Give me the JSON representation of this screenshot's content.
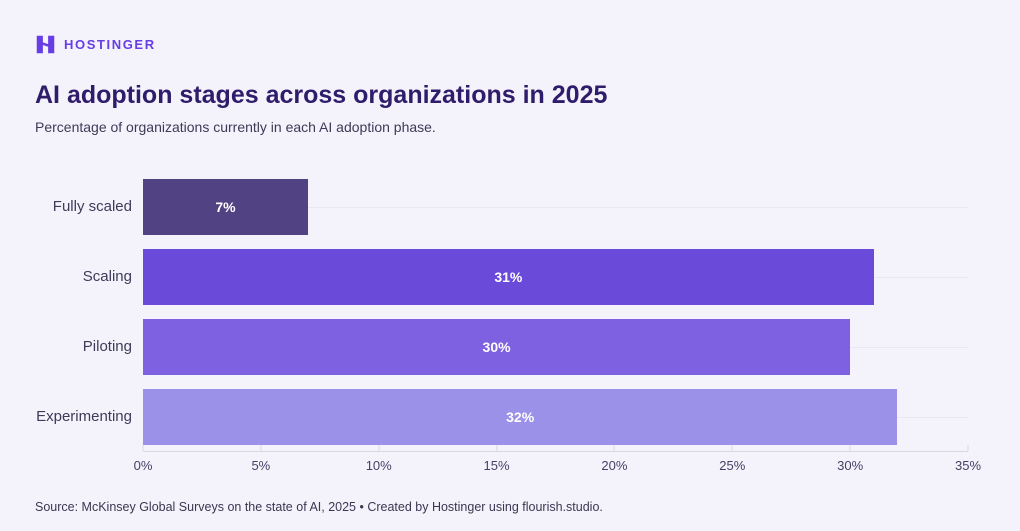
{
  "header": {
    "brand": "HOSTINGER",
    "title": "AI adoption stages across organizations in 2025",
    "subtitle": "Percentage of organizations currently in each AI adoption phase."
  },
  "chart_data": {
    "type": "bar",
    "orientation": "horizontal",
    "title": "AI adoption stages across organizations in 2025",
    "subtitle": "Percentage of organizations currently in each AI adoption phase.",
    "categories": [
      "Fully scaled",
      "Scaling",
      "Piloting",
      "Experimenting"
    ],
    "values": [
      7,
      31,
      30,
      32
    ],
    "value_labels": [
      "7%",
      "31%",
      "30%",
      "32%"
    ],
    "bar_colors": [
      "#514383",
      "#6A4AD9",
      "#7D61E0",
      "#9C91E9"
    ],
    "xlabel": "",
    "ylabel": "",
    "xlim": [
      0,
      35
    ],
    "x_tick_values": [
      0,
      5,
      10,
      15,
      20,
      25,
      30,
      35
    ],
    "x_tick_labels": [
      "0%",
      "5%",
      "10%",
      "15%",
      "20%",
      "25%",
      "30%",
      "35%"
    ],
    "grid": "faint horizontal gridline per row, bottom axis with up-ticks",
    "legend": "none"
  },
  "footer": {
    "source": "Source: McKinsey Global Surveys on the state of AI, 2025 • Created by Hostinger using flourish.studio."
  },
  "colors": {
    "background": "#F4F3FB",
    "brand": "#673DE6",
    "title": "#2F1C6A",
    "axis_line": "#D9D7E4",
    "gridline": "#E9E7F2"
  }
}
